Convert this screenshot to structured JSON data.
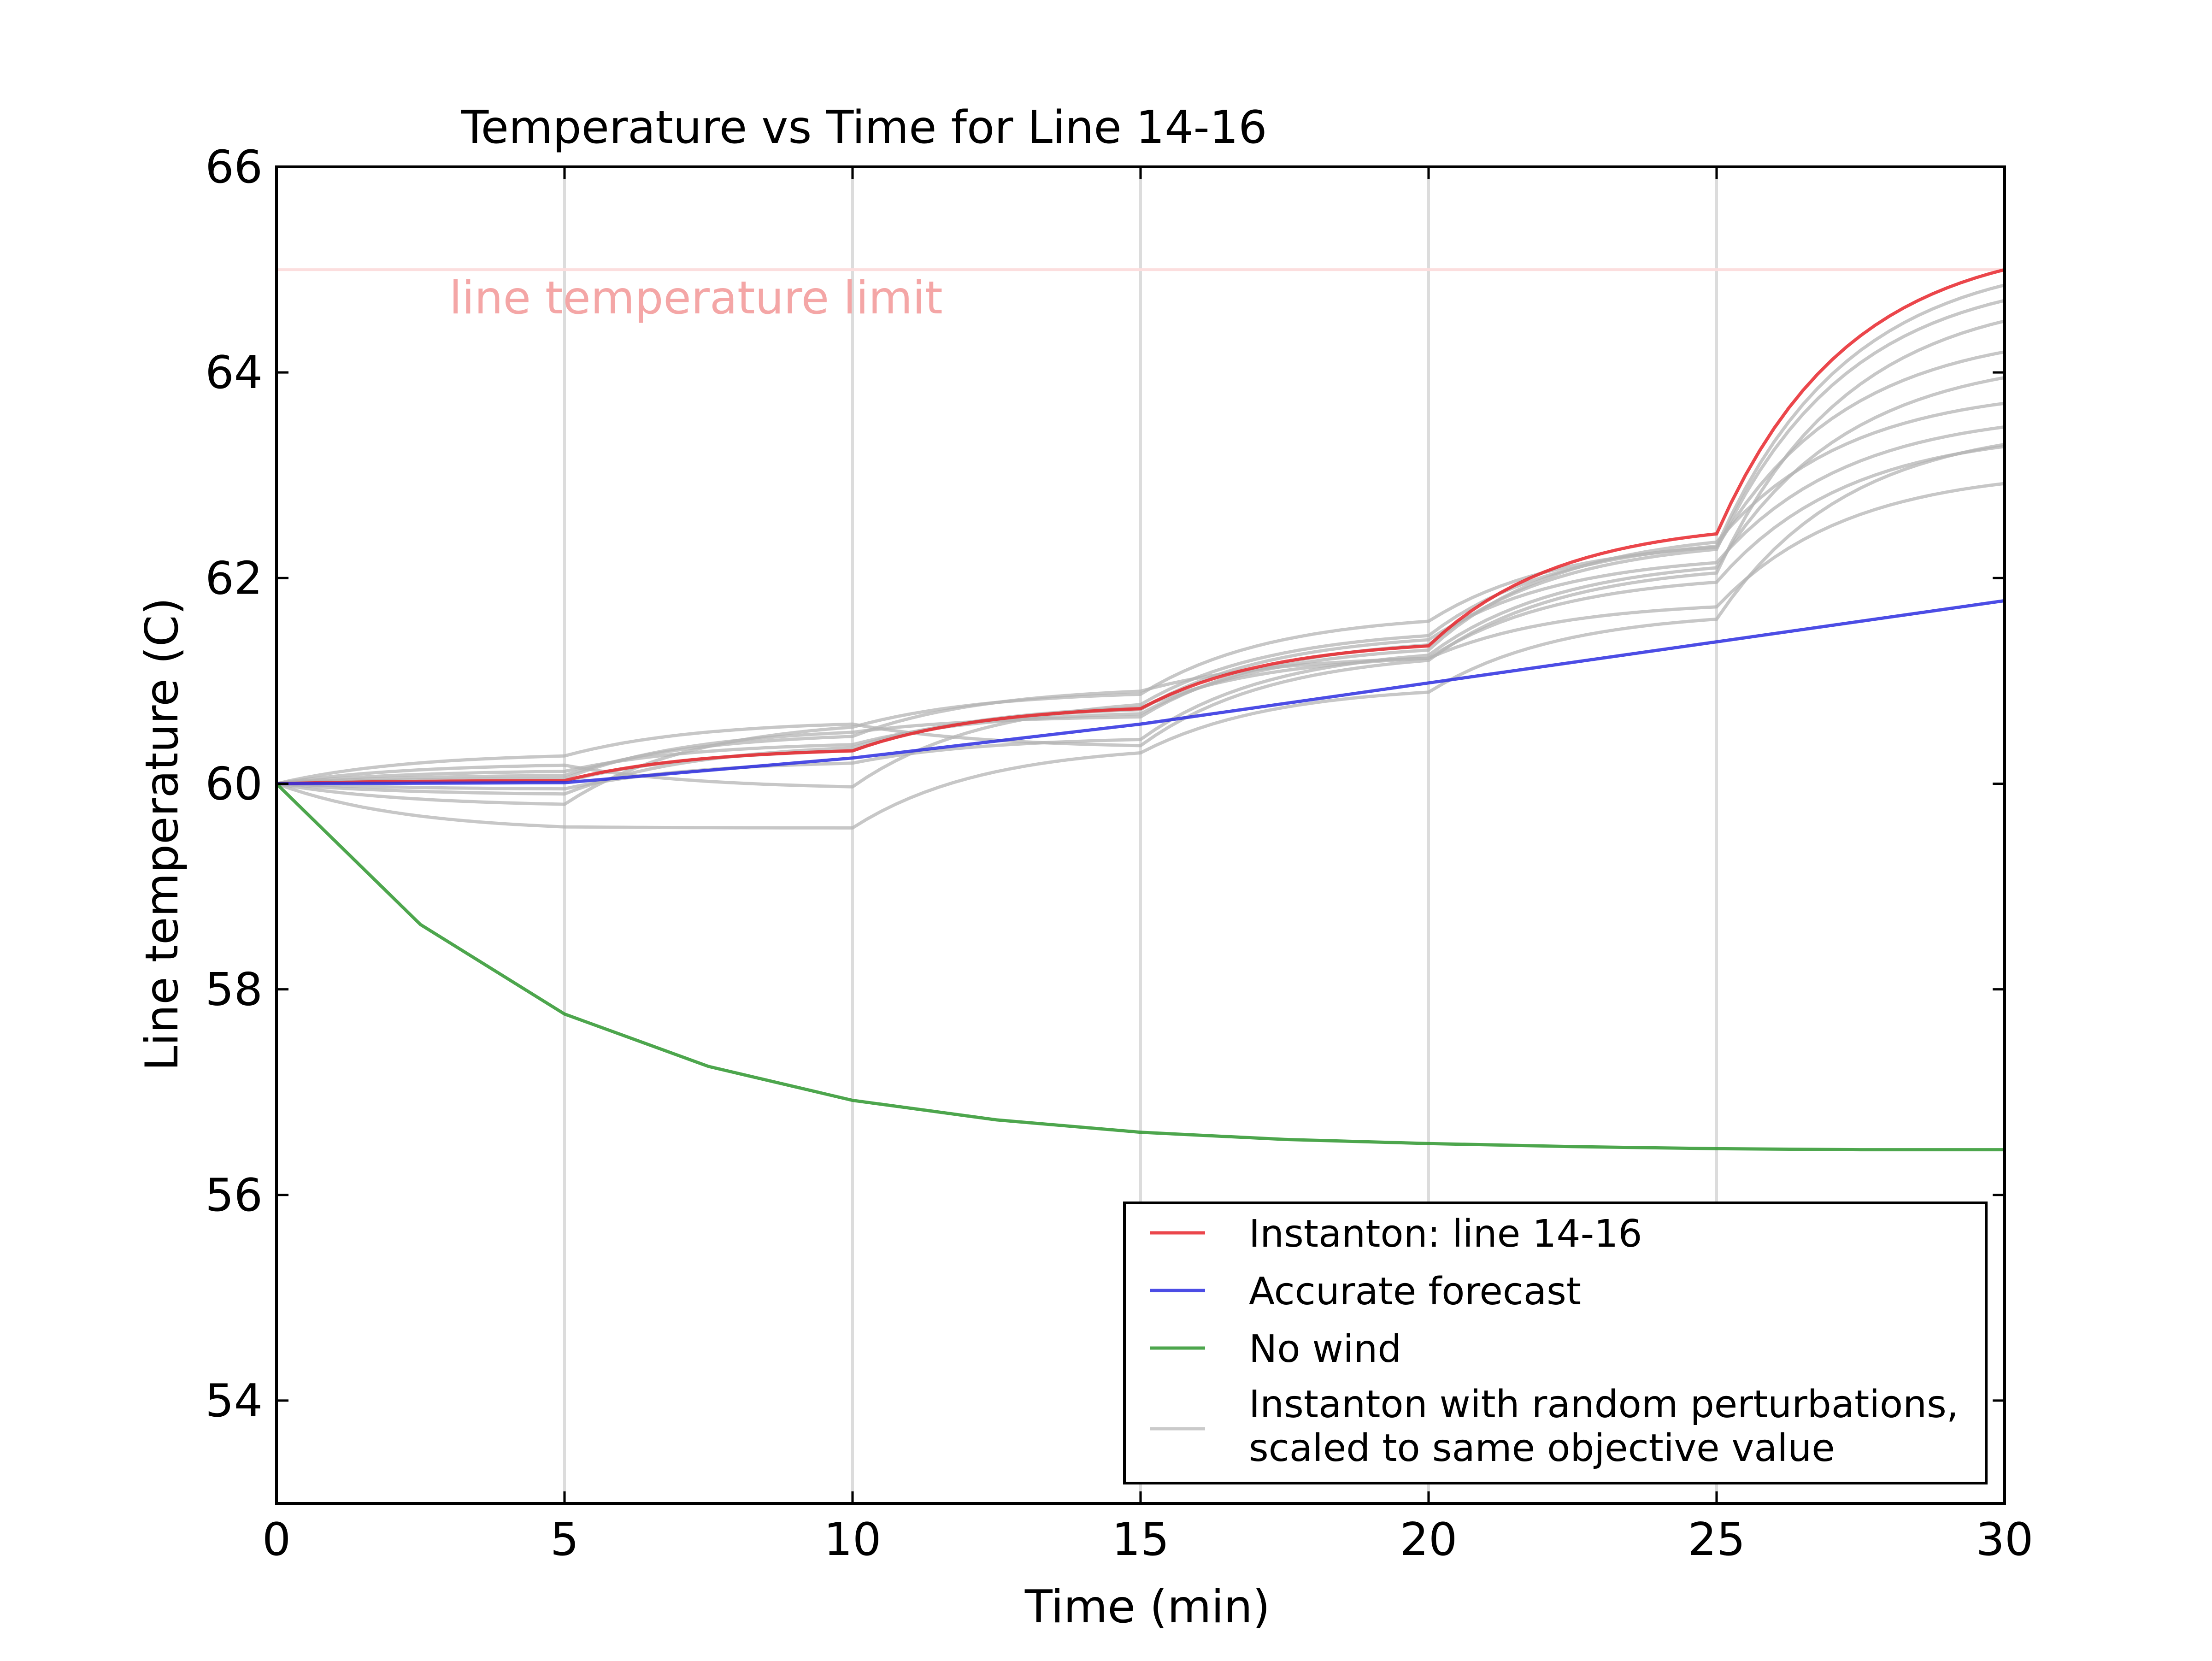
{
  "chart_data": {
    "type": "line",
    "title": "Temperature vs Time for Line 14-16",
    "xlabel": "Time (min)",
    "ylabel": "Line temperature (C)",
    "xlim": [
      0,
      30
    ],
    "ylim": [
      53,
      66
    ],
    "x_ticks": [
      0,
      5,
      10,
      15,
      20,
      25,
      30
    ],
    "x_tick_labels": [
      "0",
      "5",
      "10",
      "15",
      "20",
      "25",
      "30"
    ],
    "y_ticks": [
      54,
      56,
      58,
      60,
      62,
      64,
      66
    ],
    "y_tick_labels": [
      "54",
      "56",
      "58",
      "60",
      "62",
      "64",
      "66"
    ],
    "grid": "vertical lines at x ticks",
    "legend_position": "lower-right",
    "annotation": {
      "text": "line temperature limit",
      "value": 65,
      "x": 3,
      "color": "#f4a6a6"
    },
    "series": [
      {
        "name": "Instanton: line 14-16",
        "color": "#e8262b",
        "x": [
          0,
          5,
          10,
          15,
          20,
          25,
          30
        ],
        "y": [
          60.0,
          60.03,
          60.32,
          60.73,
          61.34,
          62.43,
          65.0
        ],
        "curve": "exponential-rise"
      },
      {
        "name": "Accurate forecast",
        "color": "#2d2ee0",
        "x": [
          0,
          5,
          10,
          15,
          20,
          25,
          30
        ],
        "y": [
          60.0,
          60.01,
          60.25,
          60.58,
          60.98,
          61.38,
          61.78
        ],
        "curve": "linear"
      },
      {
        "name": "No wind",
        "color": "#2e962e",
        "x": [
          0,
          2.5,
          5,
          7.5,
          10,
          12.5,
          15,
          17.5,
          20,
          22.5,
          25,
          27.5,
          30
        ],
        "y": [
          60.0,
          58.63,
          57.76,
          57.25,
          56.92,
          56.73,
          56.61,
          56.54,
          56.5,
          56.47,
          56.45,
          56.44,
          56.44
        ],
        "curve": "linear"
      },
      {
        "name": "Instanton with random perturbations,\nscaled to same objective value",
        "color": "#b4b4b4",
        "perturbations": [
          {
            "x": [
              0,
              5,
              10,
              15,
              20,
              25,
              30
            ],
            "y": [
              60.0,
              59.58,
              59.57,
              60.3,
              60.89,
              61.6,
              63.3
            ]
          },
          {
            "x": [
              0,
              5,
              10,
              15,
              20,
              25,
              30
            ],
            "y": [
              60.0,
              59.8,
              60.55,
              60.87,
              61.58,
              62.3,
              64.2
            ]
          },
          {
            "x": [
              0,
              5,
              10,
              15,
              20,
              25,
              30
            ],
            "y": [
              60.0,
              60.27,
              60.58,
              60.37,
              61.2,
              62.05,
              64.5
            ]
          },
          {
            "x": [
              0,
              5,
              10,
              15,
              20,
              25,
              30
            ],
            "y": [
              60.0,
              60.18,
              59.97,
              60.77,
              61.44,
              62.31,
              64.85
            ]
          },
          {
            "x": [
              0,
              5,
              10,
              15,
              20,
              25,
              30
            ],
            "y": [
              60.0,
              60.08,
              60.46,
              60.9,
              61.22,
              61.72,
              62.92
            ]
          },
          {
            "x": [
              0,
              5,
              10,
              15,
              20,
              25,
              30
            ],
            "y": [
              60.0,
              59.95,
              60.2,
              60.43,
              61.25,
              62.1,
              63.95
            ]
          },
          {
            "x": [
              0,
              5,
              10,
              15,
              20,
              25,
              30
            ],
            "y": [
              60.0,
              60.12,
              60.38,
              60.68,
              61.3,
              62.35,
              63.7
            ]
          },
          {
            "x": [
              0,
              5,
              10,
              15,
              20,
              25,
              30
            ],
            "y": [
              60.0,
              60.02,
              60.32,
              60.74,
              61.22,
              61.96,
              63.28
            ]
          },
          {
            "x": [
              0,
              5,
              10,
              15,
              20,
              25,
              30
            ],
            "y": [
              60.0,
              60.05,
              60.5,
              60.65,
              61.35,
              62.28,
              64.7
            ]
          },
          {
            "x": [
              0,
              5,
              10,
              15,
              20,
              25,
              30
            ],
            "y": [
              60.0,
              59.9,
              60.35,
              60.72,
              61.4,
              62.15,
              63.47
            ]
          }
        ]
      }
    ]
  }
}
